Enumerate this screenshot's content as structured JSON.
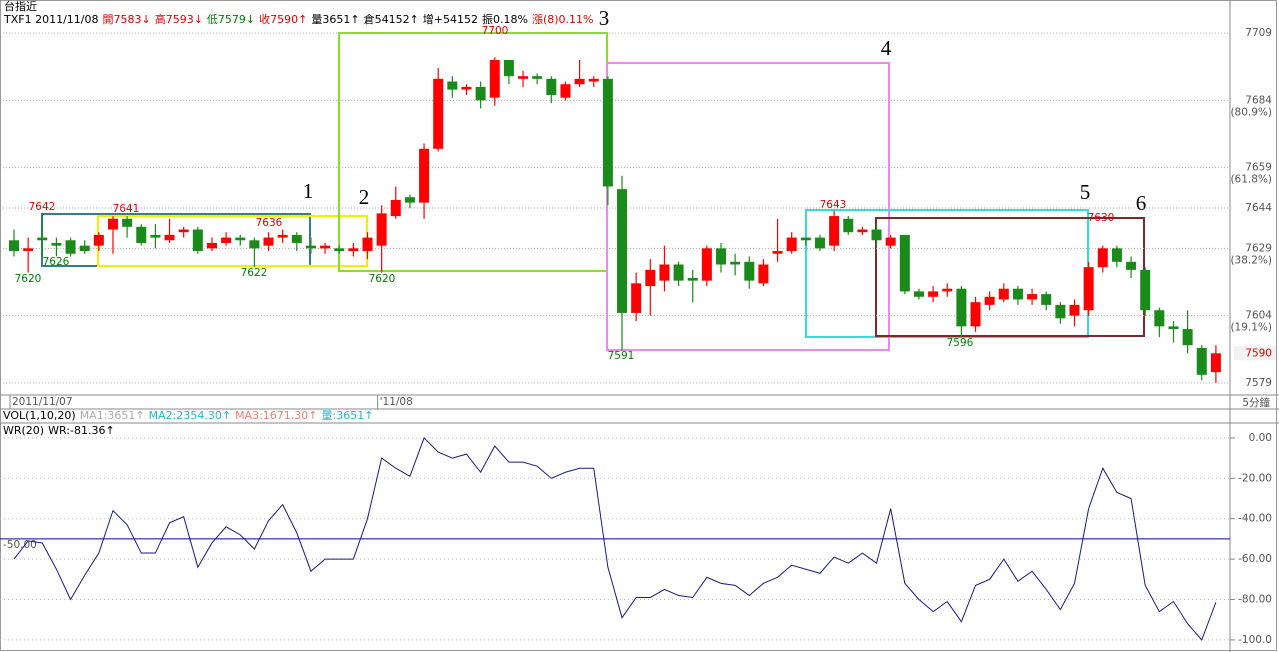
{
  "chart_data": [
    {
      "type": "candlestick",
      "title": "台指近",
      "subtitle": "TXF1 2011/11/08",
      "header_items": [
        {
          "text": "開7583↓",
          "color": "#e00000"
        },
        {
          "text": "高7593↓",
          "color": "#e00000"
        },
        {
          "text": "低7579↓",
          "color": "#008000"
        },
        {
          "text": "收7590↑",
          "color": "#e00000"
        },
        {
          "text": "量3651↑",
          "color": "#000000"
        },
        {
          "text": "倉54152↑",
          "color": "#000000"
        },
        {
          "text": "增+54152",
          "color": "#000000"
        },
        {
          "text": "振0.18%",
          "color": "#000000"
        },
        {
          "text": "漲(8)0.11%",
          "color": "#e00000"
        }
      ],
      "categories": [
        "2011/11/07",
        null,
        null,
        null,
        null,
        null,
        null,
        null,
        null,
        null,
        null,
        null,
        null,
        null,
        null,
        null,
        null,
        null,
        null,
        null,
        null,
        null,
        null,
        null,
        null,
        null,
        "'11/08",
        null,
        null,
        null,
        null,
        null,
        null,
        null,
        null,
        null,
        null,
        null,
        null,
        null,
        null,
        null,
        null,
        null,
        null,
        null,
        null,
        null,
        null,
        null,
        null,
        null,
        null,
        null,
        null,
        null,
        null,
        null,
        null,
        null,
        null,
        null,
        null,
        null,
        null,
        null,
        null,
        null,
        null,
        null,
        null,
        null,
        null,
        null,
        null,
        null,
        null,
        null,
        null,
        null,
        null,
        null,
        null,
        null,
        null,
        null
      ],
      "open": [
        7632,
        7628,
        7633,
        7631,
        7632,
        7630,
        7630,
        7636,
        7640,
        7637,
        7634,
        7632,
        7635,
        7636,
        7629,
        7631,
        7633,
        7632,
        7630,
        7633,
        7634,
        7630,
        7629,
        7629,
        7628,
        7628,
        7630,
        7641,
        7648,
        7646,
        7666,
        7691,
        7688,
        7689,
        7685,
        7699,
        7692,
        7693,
        7692,
        7685,
        7690,
        7691,
        7692,
        7651,
        7605,
        7615,
        7617,
        7623,
        7618,
        7617,
        7629,
        7624,
        7624,
        7616,
        7627,
        7628,
        7633,
        7633,
        7630,
        7640,
        7635,
        7636,
        7630,
        7634,
        7613,
        7611,
        7613,
        7614,
        7600,
        7608,
        7610,
        7614,
        7610,
        7612,
        7608,
        7604,
        7606,
        7622,
        7629,
        7624,
        7621,
        7606,
        7600,
        7599,
        7592,
        7583
      ],
      "high": [
        7636,
        7633,
        7642,
        7633,
        7633,
        7632,
        7635,
        7641,
        7641,
        7638,
        7638,
        7640,
        7637,
        7637,
        7633,
        7635,
        7634,
        7633,
        7635,
        7636,
        7635,
        7633,
        7631,
        7630,
        7631,
        7635,
        7645,
        7652,
        7649,
        7668,
        7696,
        7693,
        7690,
        7691,
        7700,
        7699,
        7695,
        7694,
        7693,
        7691,
        7699,
        7693,
        7693,
        7656,
        7620,
        7625,
        7630,
        7624,
        7621,
        7630,
        7631,
        7627,
        7626,
        7625,
        7640,
        7635,
        7633,
        7634,
        7643,
        7641,
        7637,
        7638,
        7634,
        7634,
        7614,
        7615,
        7616,
        7615,
        7611,
        7613,
        7616,
        7615,
        7614,
        7613,
        7609,
        7610,
        7624,
        7630,
        7630,
        7626,
        7622,
        7607,
        7602,
        7606,
        7593,
        7593
      ],
      "low": [
        7626,
        7620,
        7626,
        7626,
        7626,
        7627,
        7628,
        7627,
        7633,
        7630,
        7629,
        7631,
        7633,
        7627,
        7628,
        7630,
        7630,
        7622,
        7628,
        7631,
        7628,
        7627,
        7627,
        7627,
        7626,
        7625,
        7620,
        7640,
        7644,
        7640,
        7665,
        7685,
        7686,
        7681,
        7682,
        7690,
        7689,
        7690,
        7683,
        7684,
        7689,
        7689,
        7645,
        7591,
        7602,
        7604,
        7613,
        7615,
        7609,
        7615,
        7620,
        7619,
        7614,
        7615,
        7624,
        7627,
        7630,
        7628,
        7628,
        7634,
        7634,
        7630,
        7629,
        7612,
        7610,
        7609,
        7611,
        7596,
        7598,
        7606,
        7609,
        7608,
        7608,
        7606,
        7601,
        7600,
        7604,
        7620,
        7622,
        7618,
        7604,
        7596,
        7594,
        7590,
        7580,
        7579
      ],
      "close": [
        7628,
        7629,
        7632,
        7630,
        7627,
        7628,
        7634,
        7640,
        7637,
        7631,
        7633,
        7634,
        7636,
        7628,
        7631,
        7633,
        7632,
        7629,
        7633,
        7634,
        7631,
        7629,
        7630,
        7628,
        7629,
        7633,
        7642,
        7647,
        7646,
        7666,
        7692,
        7688,
        7689,
        7684,
        7699,
        7693,
        7693,
        7692,
        7686,
        7690,
        7692,
        7692,
        7652,
        7605,
        7616,
        7621,
        7623,
        7617,
        7617,
        7629,
        7623,
        7623,
        7617,
        7623,
        7628,
        7633,
        7632,
        7629,
        7641,
        7635,
        7636,
        7632,
        7633,
        7613,
        7611,
        7613,
        7614,
        7600,
        7609,
        7611,
        7614,
        7610,
        7612,
        7608,
        7603,
        7608,
        7622,
        7629,
        7624,
        7621,
        7606,
        7600,
        7599,
        7593,
        7582,
        7590
      ],
      "up_color": "#ff0000",
      "down_color": "#1a8a1a",
      "ylim": [
        7574.5,
        7721.3
      ],
      "yticks": [
        7709,
        7684,
        7659,
        7644,
        7629,
        7604,
        7579
      ],
      "fib_labels": [
        {
          "value": 7684,
          "label": "(80.9%)"
        },
        {
          "value": 7659,
          "label": "(61.8%)"
        },
        {
          "value": 7629,
          "label": "(38.2%)"
        },
        {
          "value": 7604,
          "label": "(19.1%)"
        }
      ],
      "grid": true,
      "annotations": [
        "7642",
        "7626",
        "7620",
        "7641",
        "7636",
        "7622",
        "7620",
        "7700",
        "7591",
        "7643",
        "7596",
        "7630"
      ],
      "box_labels": [
        "1",
        "2",
        "3",
        "4",
        "5",
        "6"
      ],
      "interval": "5分鐘",
      "volume_legend": [
        {
          "text": "VOL(1,10,20)",
          "color": "#000000"
        },
        {
          "text": "MA1:3651↑",
          "color": "#aaaaaa"
        },
        {
          "text": "MA2:2354.30↑",
          "color": "#20b8c8"
        },
        {
          "text": "MA3:1671.30↑",
          "color": "#f08070"
        },
        {
          "text": "量:3651↑",
          "color": "#20b8c8"
        }
      ]
    },
    {
      "type": "line",
      "legend": [
        "WR(20)",
        "WR:-81.36↑"
      ],
      "color": "#1a1a80",
      "values": [
        -60,
        -51,
        -52,
        -65,
        -80,
        -68,
        -57,
        -36,
        -43,
        -57,
        -57,
        -42,
        -39,
        -64,
        -52,
        -44,
        -48,
        -55,
        -41,
        -33,
        -47,
        -66,
        -60,
        -60,
        -60,
        -40,
        -10,
        -15,
        -19,
        0,
        -7,
        -10,
        -8,
        -17,
        -4,
        -12,
        -12,
        -14,
        -20,
        -17,
        -15,
        -15,
        -64,
        -89,
        -79,
        -79,
        -75,
        -78,
        -79,
        -69,
        -72,
        -73,
        -78,
        -72,
        -69,
        -63,
        -65,
        -67,
        -59,
        -62,
        -57,
        -62,
        -35,
        -72,
        -80,
        -86,
        -81,
        -91,
        -73,
        -70,
        -60,
        -71,
        -66,
        -75,
        -85,
        -72,
        -35,
        -15,
        -27,
        -30,
        -73,
        -86,
        -81,
        -92,
        -100,
        -81.36
      ],
      "ylim": [
        -105,
        6.4
      ],
      "yticks": [
        {
          "value": 0,
          "label": "0.00"
        },
        {
          "value": -20,
          "label": "-20.00"
        },
        {
          "value": -40,
          "label": "-40.00"
        },
        {
          "value": -60,
          "label": "-60.00"
        },
        {
          "value": -80,
          "label": "-80.00"
        },
        {
          "value": -100,
          "label": "-100.0"
        }
      ],
      "ref_line": {
        "value": -50,
        "label": "-50.00",
        "color": "#0000aa"
      }
    }
  ]
}
